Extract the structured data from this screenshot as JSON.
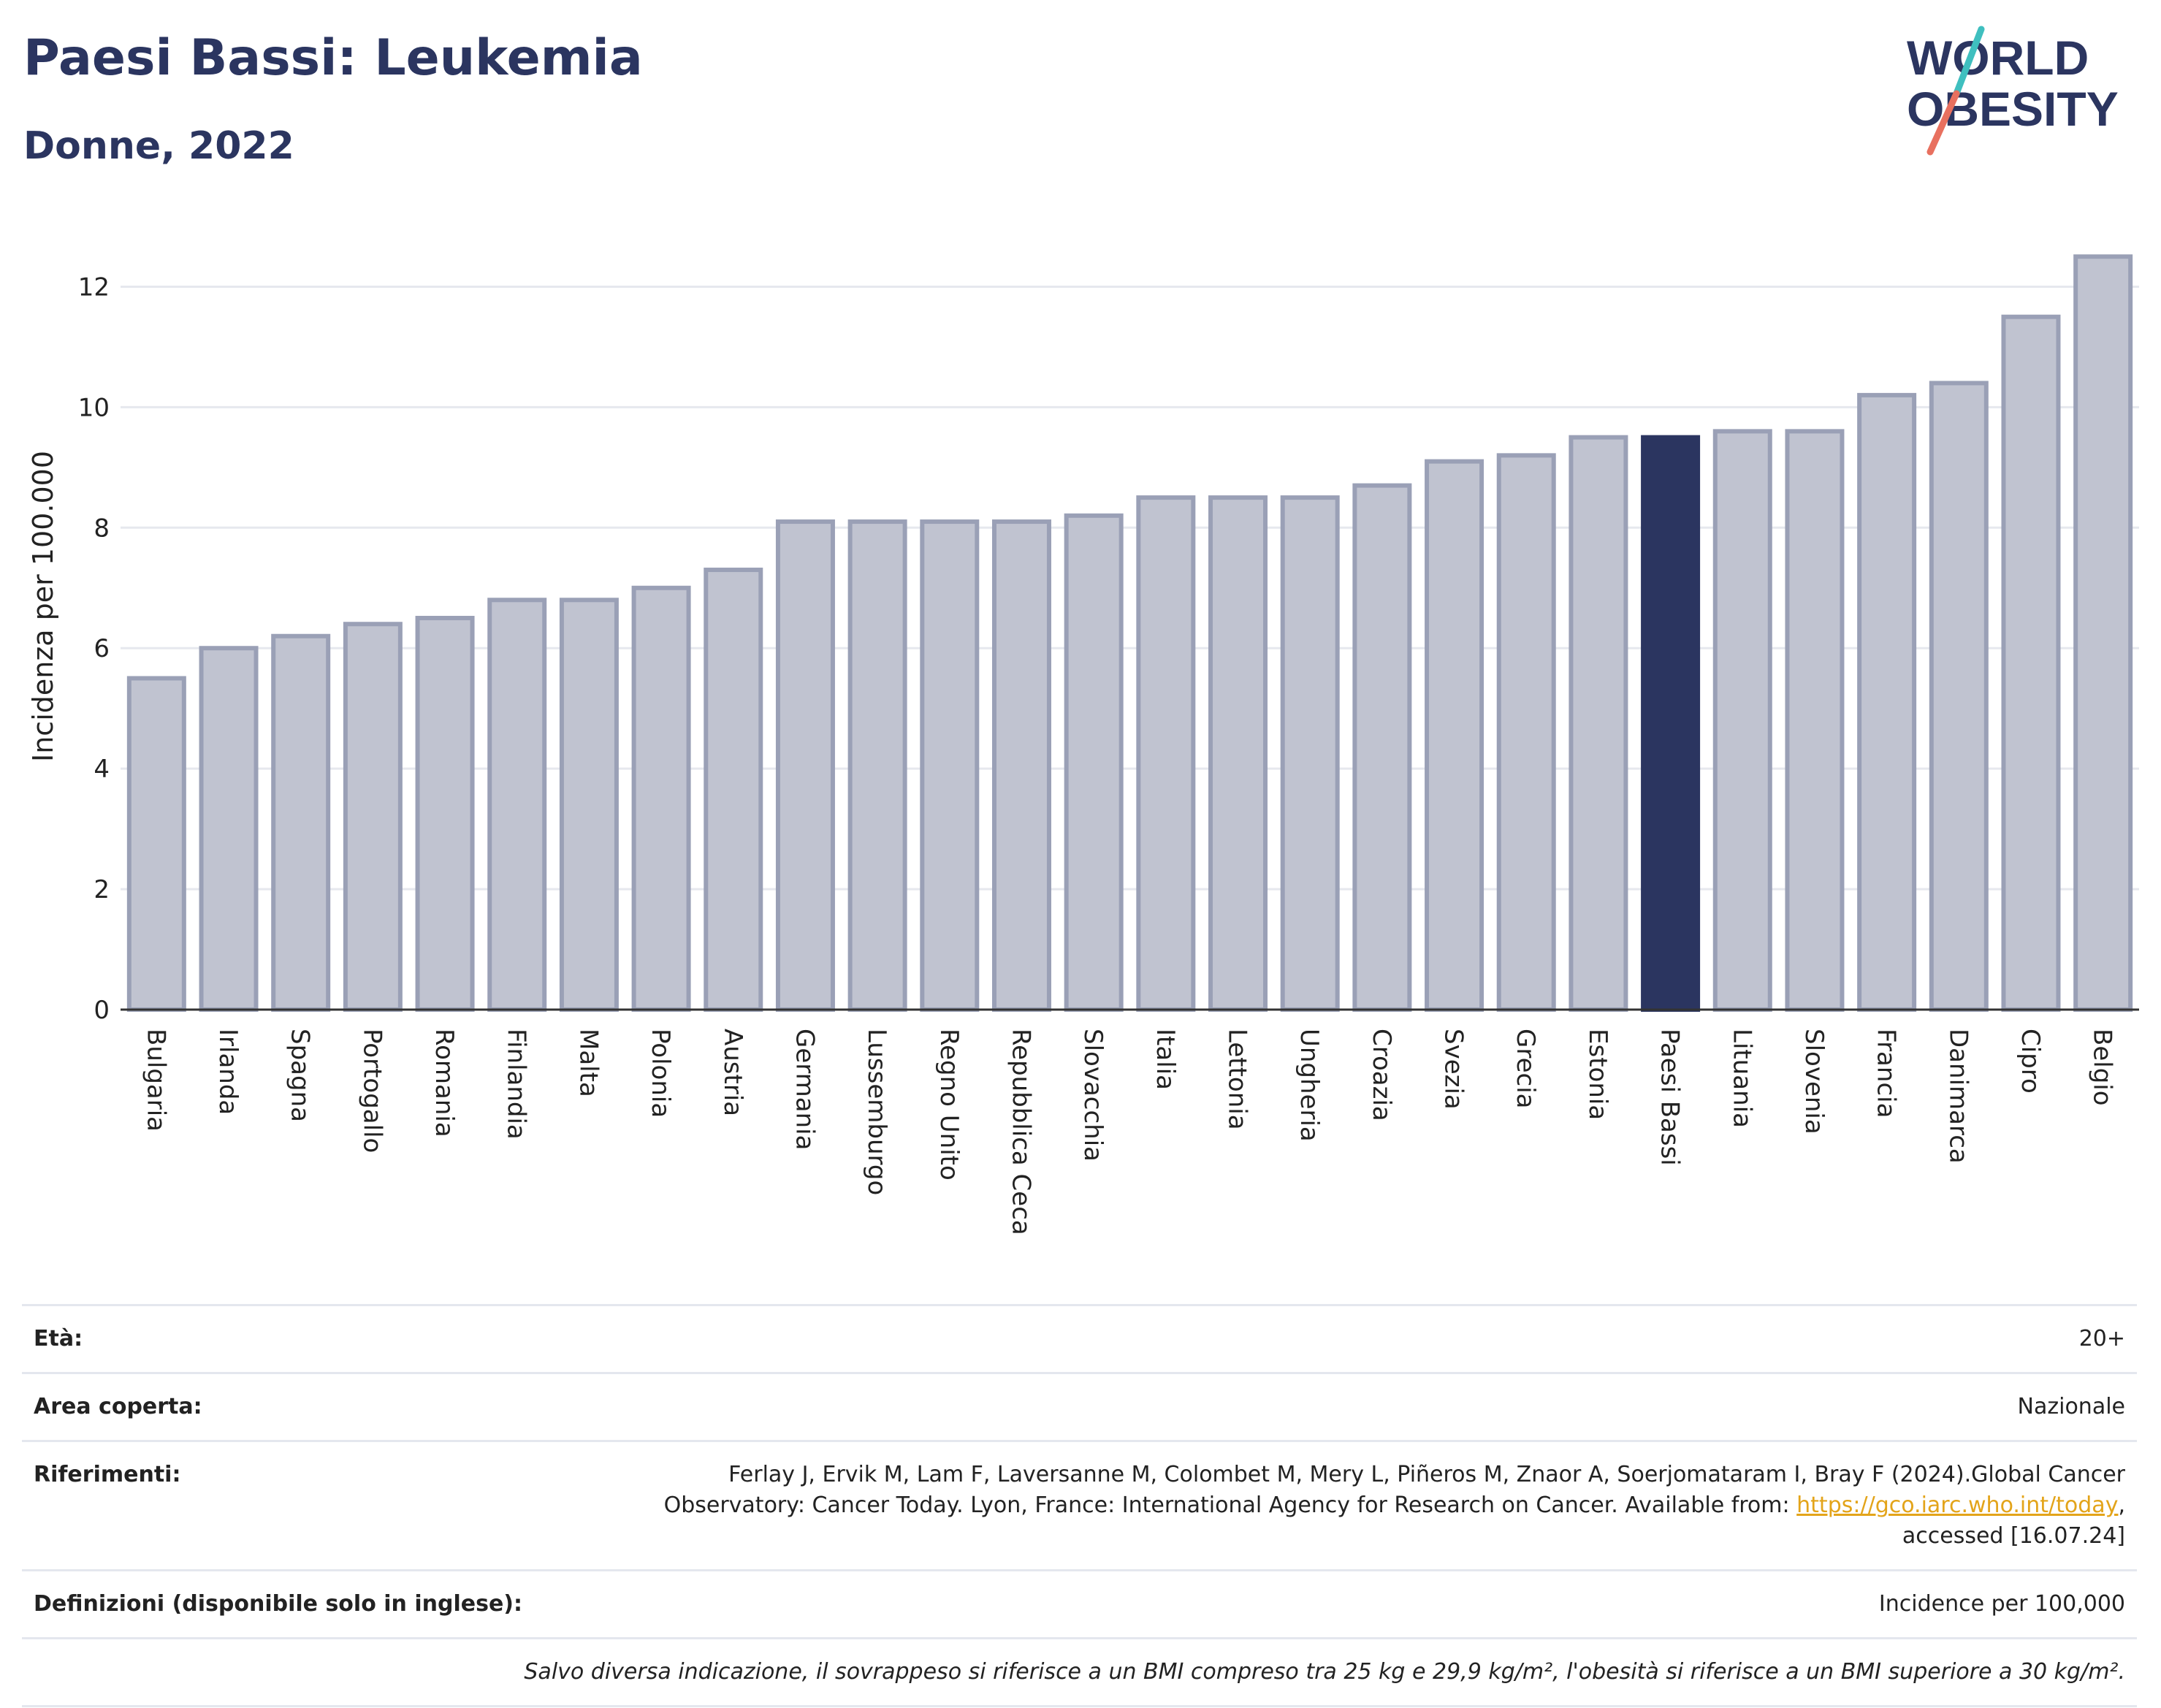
{
  "header": {
    "title": "Paesi Bassi: Leukemia",
    "subtitle": "Donne, 2022"
  },
  "logo": {
    "line1": "WORLD",
    "line2": "OBESITY",
    "text_color": "#2b3560",
    "accent_teal": "#3fbfbf",
    "accent_red": "#e8705f"
  },
  "chart_data": {
    "type": "bar",
    "title": "Paesi Bassi: Leukemia",
    "subtitle": "Donne, 2022",
    "ylabel": "Incidenza per 100.000",
    "xlabel": "",
    "ylim": [
      0,
      13
    ],
    "yticks": [
      0,
      2,
      4,
      6,
      8,
      10,
      12
    ],
    "grid": true,
    "highlight": "Paesi Bassi",
    "colors": {
      "bar": "#c0c3d0",
      "bar_border": "#9aa0b6",
      "highlight": "#2b3560"
    },
    "categories": [
      "Bulgaria",
      "Irlanda",
      "Spagna",
      "Portogallo",
      "Romania",
      "Finlandia",
      "Malta",
      "Polonia",
      "Austria",
      "Germania",
      "Lussemburgo",
      "Regno Unito",
      "Repubblica Ceca",
      "Slovacchia",
      "Italia",
      "Lettonia",
      "Ungheria",
      "Croazia",
      "Svezia",
      "Grecia",
      "Estonia",
      "Paesi Bassi",
      "Lituania",
      "Slovenia",
      "Francia",
      "Danimarca",
      "Cipro",
      "Belgio"
    ],
    "values": [
      5.5,
      6.0,
      6.2,
      6.4,
      6.5,
      6.8,
      6.8,
      7.0,
      7.3,
      8.1,
      8.1,
      8.1,
      8.1,
      8.2,
      8.5,
      8.5,
      8.5,
      8.7,
      9.1,
      9.2,
      9.5,
      9.5,
      9.6,
      9.6,
      10.2,
      10.4,
      11.5,
      12.5
    ]
  },
  "info": {
    "age_label": "Età:",
    "age_value": "20+",
    "area_label": "Area coperta:",
    "area_value": "Nazionale",
    "refs_label": "Riferimenti:",
    "refs_text_1": "Ferlay J, Ervik M, Lam F, Laversanne M, Colombet M, Mery L, Piñeros M, Znaor A, Soerjomataram I, Bray F (2024).Global Cancer Observatory: Cancer Today. Lyon, France: International Agency for Research on Cancer. Available from: ",
    "refs_link": "https://gco.iarc.who.int/today",
    "refs_text_2": ", accessed [16.07.24]",
    "defs_label": "Definizioni (disponibile solo in inglese):",
    "defs_value": "Incidence per 100,000",
    "note": "Salvo diversa indicazione, il sovrappeso si riferisce a un BMI compreso tra 25 kg e 29,9 kg/m², l'obesità si riferisce a un BMI superiore a 30 kg/m²."
  }
}
